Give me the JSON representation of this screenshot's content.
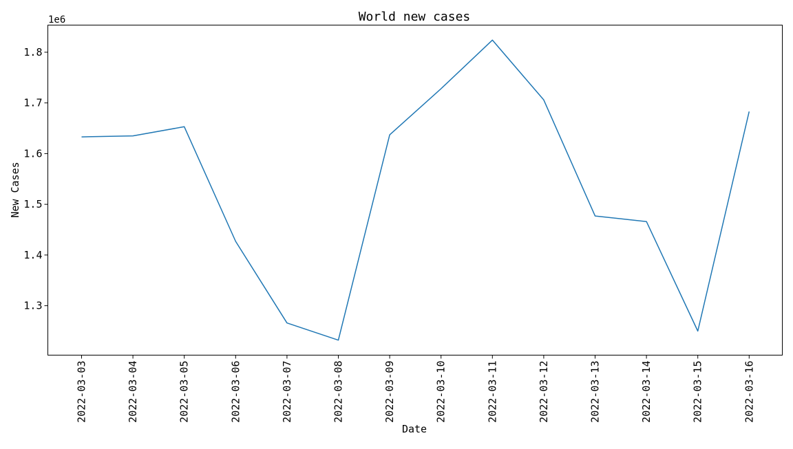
{
  "chart_data": {
    "type": "line",
    "title": "World new cases",
    "xlabel": "Date",
    "ylabel": "New Cases",
    "y_offset_label": "1e6",
    "x": [
      "2022-03-03",
      "2022-03-04",
      "2022-03-05",
      "2022-03-06",
      "2022-03-07",
      "2022-03-08",
      "2022-03-09",
      "2022-03-10",
      "2022-03-11",
      "2022-03-12",
      "2022-03-13",
      "2022-03-14",
      "2022-03-15",
      "2022-03-16"
    ],
    "series": [
      {
        "values": [
          1.633,
          1.635,
          1.653,
          1.427,
          1.266,
          1.232,
          1.637,
          1.728,
          1.824,
          1.706,
          1.477,
          1.466,
          1.25,
          1.683
        ],
        "color": "#1f77b4"
      }
    ],
    "yticks": [
      "1.3",
      "1.4",
      "1.5",
      "1.6",
      "1.7",
      "1.8"
    ],
    "ylim": [
      1.2025,
      1.8535
    ],
    "grid": false,
    "legend": false
  }
}
